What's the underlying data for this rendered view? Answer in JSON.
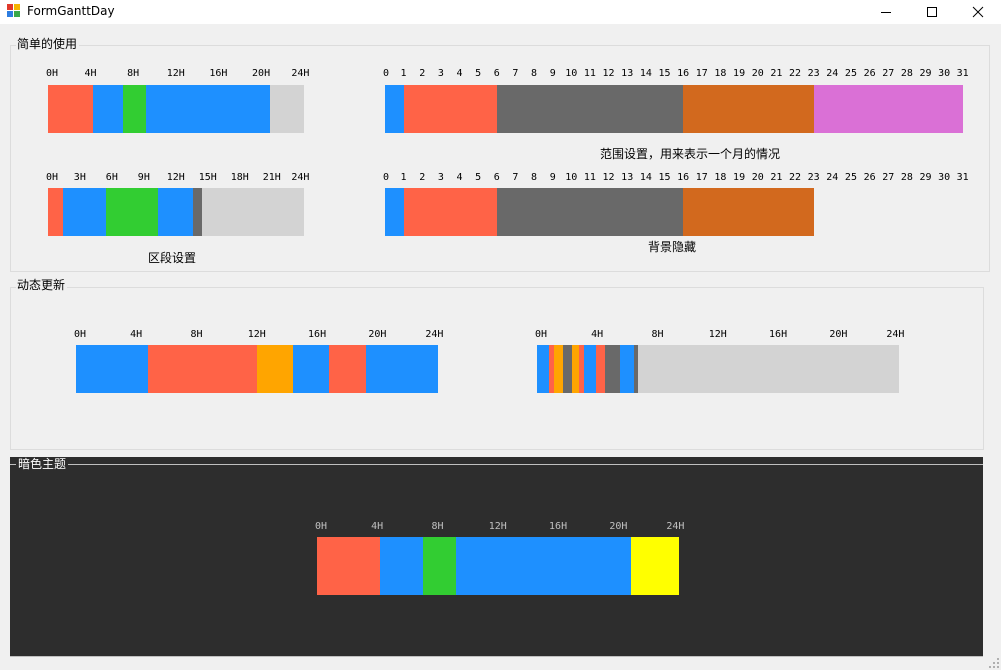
{
  "window": {
    "title": "FormGanttDay",
    "controls": {
      "minimize": "minimize",
      "maximize": "maximize",
      "close": "close"
    }
  },
  "groups": {
    "simple": {
      "title": "简单的使用"
    },
    "dynamic": {
      "title": "动态更新"
    },
    "dark": {
      "title": "暗色主题"
    }
  },
  "colors": {
    "tomato": "#ff6347",
    "blue": "#1e90ff",
    "green": "#32cd32",
    "gray": "#696969",
    "light_gray": "#d3d3d3",
    "chocolate": "#d2691e",
    "orchid": "#da70d6",
    "orange": "#ffa500",
    "yellow": "#ffff00",
    "dark_bg": "#2d2d2d"
  },
  "charts": [
    {
      "name": "day-chart-basic",
      "ticks": [
        "0H",
        "4H",
        "8H",
        "12H",
        "16H",
        "20H",
        "24H"
      ],
      "max": 24,
      "segments": [
        {
          "start": 0,
          "end": 4.2,
          "color": "#ff6347"
        },
        {
          "start": 4.2,
          "end": 7,
          "color": "#1e90ff"
        },
        {
          "start": 7,
          "end": 9.2,
          "color": "#32cd32"
        },
        {
          "start": 9.2,
          "end": 20.8,
          "color": "#1e90ff"
        },
        {
          "start": 20.8,
          "end": 24,
          "color": "#d3d3d3"
        }
      ]
    },
    {
      "name": "month-chart-range",
      "ticks": [
        "0",
        "1",
        "2",
        "3",
        "4",
        "5",
        "6",
        "7",
        "8",
        "9",
        "10",
        "11",
        "12",
        "13",
        "14",
        "15",
        "16",
        "17",
        "18",
        "19",
        "20",
        "21",
        "22",
        "23",
        "24",
        "25",
        "26",
        "27",
        "28",
        "29",
        "30",
        "31"
      ],
      "max": 31,
      "caption": "范围设置，用来表示一个月的情况",
      "segments": [
        {
          "start": 0,
          "end": 1,
          "color": "#1e90ff"
        },
        {
          "start": 1,
          "end": 6,
          "color": "#ff6347"
        },
        {
          "start": 6,
          "end": 16,
          "color": "#696969"
        },
        {
          "start": 16,
          "end": 23,
          "color": "#d2691e"
        },
        {
          "start": 23,
          "end": 31,
          "color": "#da70d6"
        }
      ]
    },
    {
      "name": "day-chart-section",
      "ticks": [
        "0H",
        "3H",
        "6H",
        "9H",
        "12H",
        "15H",
        "18H",
        "21H",
        "24H"
      ],
      "max": 24,
      "caption": "区段设置",
      "segments": [
        {
          "start": 0,
          "end": 1.4,
          "color": "#ff6347"
        },
        {
          "start": 1.4,
          "end": 5.4,
          "color": "#1e90ff"
        },
        {
          "start": 5.4,
          "end": 10.3,
          "color": "#32cd32"
        },
        {
          "start": 10.3,
          "end": 13.6,
          "color": "#1e90ff"
        },
        {
          "start": 13.6,
          "end": 14.4,
          "color": "#696969"
        },
        {
          "start": 14.4,
          "end": 24,
          "color": "#d3d3d3"
        }
      ]
    },
    {
      "name": "month-chart-hidden-bg",
      "ticks": [
        "0",
        "1",
        "2",
        "3",
        "4",
        "5",
        "6",
        "7",
        "8",
        "9",
        "10",
        "11",
        "12",
        "13",
        "14",
        "15",
        "16",
        "17",
        "18",
        "19",
        "20",
        "21",
        "22",
        "23",
        "24",
        "25",
        "26",
        "27",
        "28",
        "29",
        "30",
        "31"
      ],
      "max": 31,
      "caption": "背景隐藏",
      "segments": [
        {
          "start": 0,
          "end": 1,
          "color": "#1e90ff"
        },
        {
          "start": 1,
          "end": 6,
          "color": "#ff6347"
        },
        {
          "start": 6,
          "end": 16,
          "color": "#696969"
        },
        {
          "start": 16,
          "end": 23,
          "color": "#d2691e"
        }
      ]
    },
    {
      "name": "day-chart-dynamic-1",
      "ticks": [
        "0H",
        "4H",
        "8H",
        "12H",
        "16H",
        "20H",
        "24H"
      ],
      "max": 24,
      "segments": [
        {
          "start": 0,
          "end": 4.8,
          "color": "#1e90ff"
        },
        {
          "start": 4.8,
          "end": 12,
          "color": "#ff6347"
        },
        {
          "start": 12,
          "end": 14.4,
          "color": "#ffa500"
        },
        {
          "start": 14.4,
          "end": 16.8,
          "color": "#1e90ff"
        },
        {
          "start": 16.8,
          "end": 19.2,
          "color": "#ff6347"
        },
        {
          "start": 19.2,
          "end": 24,
          "color": "#1e90ff"
        }
      ]
    },
    {
      "name": "day-chart-dynamic-2",
      "ticks": [
        "0H",
        "4H",
        "8H",
        "12H",
        "16H",
        "20H",
        "24H"
      ],
      "max": 24,
      "segments": [
        {
          "start": 0,
          "end": 0.8,
          "color": "#1e90ff"
        },
        {
          "start": 0.8,
          "end": 1.1,
          "color": "#ff6347"
        },
        {
          "start": 1.1,
          "end": 1.7,
          "color": "#ffa500"
        },
        {
          "start": 1.7,
          "end": 2.3,
          "color": "#696969"
        },
        {
          "start": 2.3,
          "end": 2.8,
          "color": "#ffa500"
        },
        {
          "start": 2.8,
          "end": 3.1,
          "color": "#ff6347"
        },
        {
          "start": 3.1,
          "end": 3.9,
          "color": "#1e90ff"
        },
        {
          "start": 3.9,
          "end": 4.5,
          "color": "#ff6347"
        },
        {
          "start": 4.5,
          "end": 5.5,
          "color": "#696969"
        },
        {
          "start": 5.5,
          "end": 6.4,
          "color": "#1e90ff"
        },
        {
          "start": 6.4,
          "end": 6.7,
          "color": "#696969"
        },
        {
          "start": 6.7,
          "end": 24,
          "color": "#d3d3d3"
        }
      ]
    },
    {
      "name": "day-chart-dark",
      "ticks": [
        "0H",
        "4H",
        "8H",
        "12H",
        "16H",
        "20H",
        "24H"
      ],
      "max": 24,
      "dark": true,
      "segments": [
        {
          "start": 0,
          "end": 4.2,
          "color": "#ff6347"
        },
        {
          "start": 4.2,
          "end": 7,
          "color": "#1e90ff"
        },
        {
          "start": 7,
          "end": 9.2,
          "color": "#32cd32"
        },
        {
          "start": 9.2,
          "end": 20.8,
          "color": "#1e90ff"
        },
        {
          "start": 20.8,
          "end": 24,
          "color": "#ffff00"
        }
      ]
    }
  ]
}
